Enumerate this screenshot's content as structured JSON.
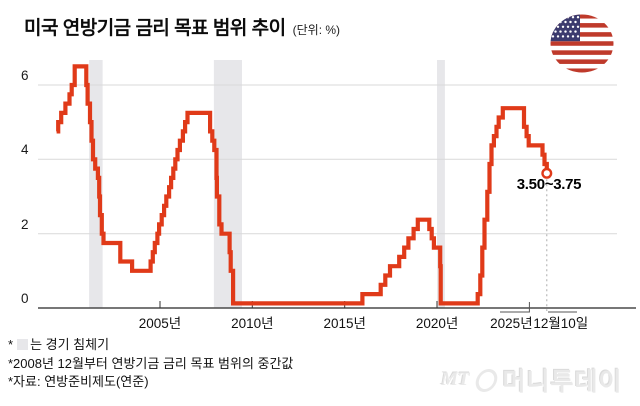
{
  "header": {
    "title": "미국 연방기금 금리 목표 범위 추이",
    "unit_label": "(단위: %)"
  },
  "chart_data": {
    "type": "line",
    "title": "미국 연방기금 금리 목표 범위 추이",
    "unit": "%",
    "step": true,
    "grid": "horizontal",
    "legend": "none",
    "ylim": [
      0,
      6.5
    ],
    "xlim": [
      1999.4,
      2026.5
    ],
    "y_ticks": [
      {
        "value": 6,
        "label": "6"
      },
      {
        "value": 4,
        "label": "4"
      },
      {
        "value": 2,
        "label": "2"
      },
      {
        "value": 0,
        "label": "0"
      }
    ],
    "x_ticks": [
      {
        "year": 2005,
        "label": "2005년"
      },
      {
        "year": 2010,
        "label": "2010년"
      },
      {
        "year": 2015,
        "label": "2015년"
      },
      {
        "year": 2020,
        "label": "2020년"
      },
      {
        "year": 2025,
        "label": "2025년"
      },
      {
        "year": 2025.94,
        "label": "12월10일"
      }
    ],
    "series": [
      {
        "name": "연방기금 금리 목표 범위 (2008년 12월부터 중간값)",
        "color": "#e03a19",
        "points": [
          [
            1999.4,
            4.75
          ],
          [
            1999.49,
            5.0
          ],
          [
            1999.65,
            5.25
          ],
          [
            1999.88,
            5.5
          ],
          [
            2000.1,
            5.75
          ],
          [
            2000.22,
            6.0
          ],
          [
            2000.38,
            6.5
          ],
          [
            2001.01,
            6.0
          ],
          [
            2001.08,
            5.5
          ],
          [
            2001.21,
            5.0
          ],
          [
            2001.29,
            4.5
          ],
          [
            2001.37,
            4.0
          ],
          [
            2001.49,
            3.75
          ],
          [
            2001.64,
            3.5
          ],
          [
            2001.71,
            3.0
          ],
          [
            2001.75,
            2.5
          ],
          [
            2001.85,
            2.0
          ],
          [
            2001.94,
            1.75
          ],
          [
            2002.85,
            1.25
          ],
          [
            2003.49,
            1.0
          ],
          [
            2004.49,
            1.25
          ],
          [
            2004.61,
            1.5
          ],
          [
            2004.72,
            1.75
          ],
          [
            2004.86,
            2.0
          ],
          [
            2004.95,
            2.25
          ],
          [
            2005.09,
            2.5
          ],
          [
            2005.22,
            2.75
          ],
          [
            2005.34,
            3.0
          ],
          [
            2005.49,
            3.25
          ],
          [
            2005.6,
            3.5
          ],
          [
            2005.72,
            3.75
          ],
          [
            2005.83,
            4.0
          ],
          [
            2005.95,
            4.25
          ],
          [
            2006.08,
            4.5
          ],
          [
            2006.24,
            4.75
          ],
          [
            2006.36,
            5.0
          ],
          [
            2006.49,
            5.25
          ],
          [
            2007.71,
            4.75
          ],
          [
            2007.83,
            4.5
          ],
          [
            2007.94,
            4.25
          ],
          [
            2008.06,
            3.5
          ],
          [
            2008.08,
            3.0
          ],
          [
            2008.21,
            2.25
          ],
          [
            2008.33,
            2.0
          ],
          [
            2008.77,
            1.5
          ],
          [
            2008.83,
            1.0
          ],
          [
            2008.96,
            0.125
          ],
          [
            2015.96,
            0.375
          ],
          [
            2016.95,
            0.625
          ],
          [
            2017.2,
            0.875
          ],
          [
            2017.45,
            1.125
          ],
          [
            2017.95,
            1.375
          ],
          [
            2018.22,
            1.625
          ],
          [
            2018.45,
            1.875
          ],
          [
            2018.73,
            2.125
          ],
          [
            2018.96,
            2.375
          ],
          [
            2019.58,
            2.125
          ],
          [
            2019.71,
            1.875
          ],
          [
            2019.83,
            1.625
          ],
          [
            2020.17,
            1.125
          ],
          [
            2020.2,
            0.125
          ],
          [
            2022.2,
            0.375
          ],
          [
            2022.34,
            0.875
          ],
          [
            2022.45,
            1.625
          ],
          [
            2022.57,
            2.375
          ],
          [
            2022.72,
            3.125
          ],
          [
            2022.84,
            3.875
          ],
          [
            2022.95,
            4.375
          ],
          [
            2023.08,
            4.625
          ],
          [
            2023.22,
            4.875
          ],
          [
            2023.34,
            5.125
          ],
          [
            2023.56,
            5.375
          ],
          [
            2024.71,
            4.875
          ],
          [
            2024.85,
            4.625
          ],
          [
            2024.96,
            4.375
          ],
          [
            2025.71,
            4.125
          ],
          [
            2025.82,
            3.875
          ],
          [
            2025.94,
            3.625
          ]
        ]
      }
    ],
    "recession_bands": [
      [
        2001.16,
        2001.89
      ],
      [
        2007.92,
        2009.44
      ],
      [
        2020.0,
        2020.43
      ]
    ],
    "end_annotation": {
      "label": "3.50~3.75",
      "year": 2025.94,
      "value": 3.625
    },
    "colors": {
      "line": "#e03a19",
      "recession_band": "#e7e7ea",
      "gridline": "#d9d9d9",
      "axis": "#4a4a4a"
    }
  },
  "flag": {
    "icon": "us-flag-circle"
  },
  "footnotes": {
    "star": "*",
    "recession_note_suffix": "는 경기 침체기",
    "midpoint_note": "*2008년 12월부터 연방기금 금리 목표 범위의 중간값",
    "source_note": "*자료: 연방준비제도(연준)"
  },
  "watermark": {
    "abbr": "MT",
    "brand": "머니투데이"
  }
}
